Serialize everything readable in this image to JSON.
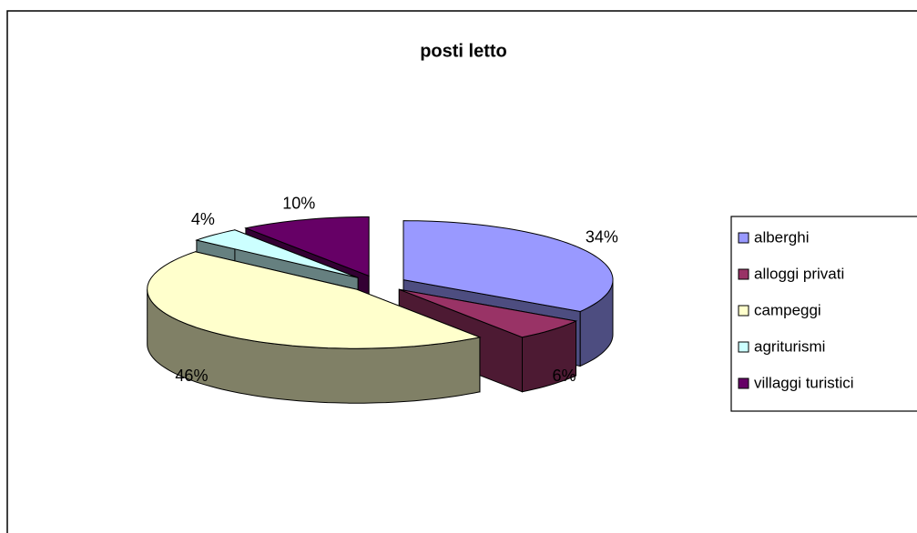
{
  "chart_data": {
    "type": "pie3d",
    "title": "posti letto",
    "categories": [
      "alberghi",
      "alloggi privati",
      "campeggi",
      "agriturismi",
      "villaggi turistici"
    ],
    "values": [
      34,
      6,
      46,
      4,
      10
    ],
    "value_labels": [
      "34%",
      "6%",
      "46%",
      "4%",
      "10%"
    ],
    "colors": [
      "#9999ff",
      "#993366",
      "#ffffcc",
      "#ccffff",
      "#660066"
    ],
    "legend": "right"
  }
}
